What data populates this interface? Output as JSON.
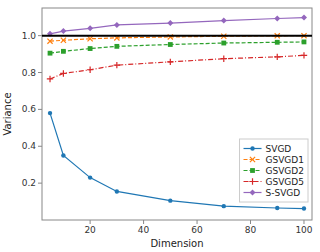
{
  "chart_data": {
    "type": "line",
    "x": [
      5,
      10,
      20,
      30,
      50,
      70,
      90,
      100
    ],
    "series": [
      {
        "name": "SVGD",
        "color": "#1f77b4",
        "marker": "circle",
        "line_style": "solid",
        "values": [
          0.58,
          0.35,
          0.23,
          0.155,
          0.105,
          0.075,
          0.065,
          0.062
        ]
      },
      {
        "name": "GSVGD1",
        "color": "#ff7f0e",
        "marker": "x",
        "line_style": "dashed",
        "values": [
          0.97,
          0.975,
          0.983,
          0.988,
          0.993,
          0.997,
          0.999,
          1.0
        ]
      },
      {
        "name": "GSVGD2",
        "color": "#2ca02c",
        "marker": "square",
        "line_style": "dashed",
        "values": [
          0.905,
          0.915,
          0.93,
          0.942,
          0.952,
          0.96,
          0.964,
          0.966
        ]
      },
      {
        "name": "GSVGD5",
        "color": "#d62728",
        "marker": "plus",
        "line_style": "dashdot",
        "values": [
          0.765,
          0.795,
          0.815,
          0.84,
          0.858,
          0.875,
          0.885,
          0.893
        ]
      },
      {
        "name": "S-SVGD",
        "color": "#9467bd",
        "marker": "diamond",
        "line_style": "solid",
        "values": [
          1.01,
          1.025,
          1.04,
          1.058,
          1.068,
          1.082,
          1.093,
          1.098
        ]
      }
    ],
    "hline": 1.0,
    "xlabel": "Dimension",
    "ylabel": "Variance",
    "xlim": [
      2,
      103
    ],
    "ylim": [
      0.0,
      1.15
    ],
    "xticks": [
      20,
      40,
      60,
      80,
      100
    ],
    "yticks": [
      0.2,
      0.4,
      0.6,
      0.8,
      {
        "value": 1.0,
        "label": "1.0"
      }
    ],
    "legend": "lower right"
  }
}
